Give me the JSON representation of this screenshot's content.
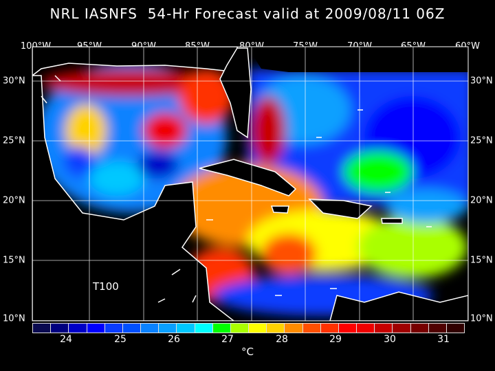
{
  "title": "NRL IASNFS  54-Hr Forecast valid at 2009/08/11 06Z",
  "lon_labels": [
    "100°W",
    "95°W",
    "90°W",
    "85°W",
    "80°W",
    "75°W",
    "70°W",
    "65°W",
    "60°W"
  ],
  "lat_labels": [
    "30°N",
    "25°N",
    "20°N",
    "15°N",
    "10°N"
  ],
  "map_label": "T100",
  "colorbar": {
    "unit": "°C",
    "tick_labels": [
      "24",
      "25",
      "26",
      "27",
      "28",
      "29",
      "30",
      "31"
    ],
    "colors": [
      "#0a0a50",
      "#000080",
      "#0000c8",
      "#0000ff",
      "#0a3cff",
      "#0050ff",
      "#0a82ff",
      "#0aa0ff",
      "#00c8ff",
      "#00ffff",
      "#00ff00",
      "#aaff00",
      "#ffff00",
      "#ffd200",
      "#ff8c00",
      "#ff5000",
      "#ff3200",
      "#ff0000",
      "#f00000",
      "#c80000",
      "#a00000",
      "#780000",
      "#500000",
      "#300000"
    ]
  }
}
